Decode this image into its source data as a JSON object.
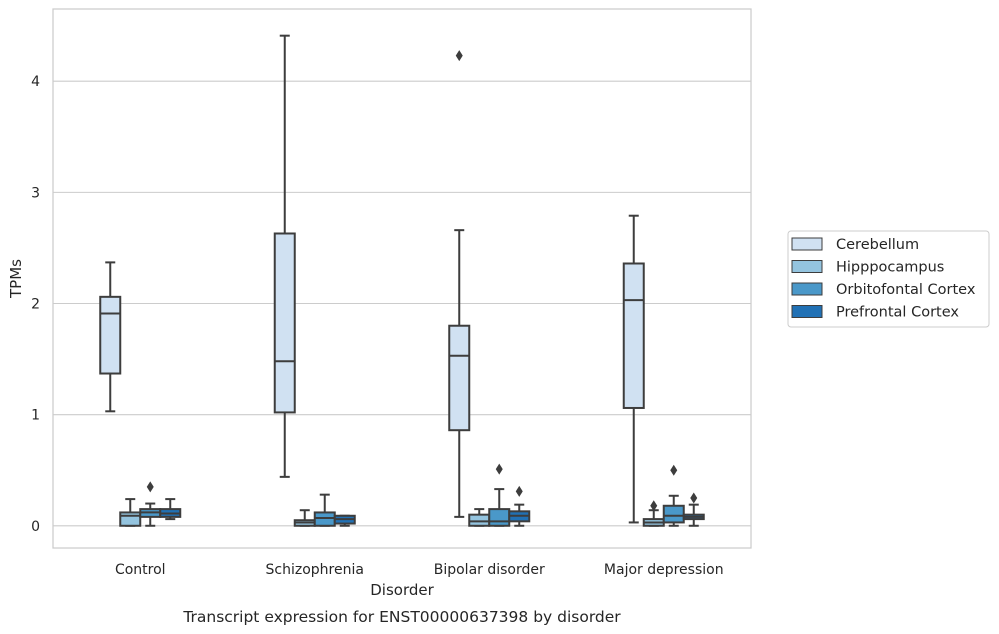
{
  "chart_data": {
    "type": "box",
    "caption": "Transcript expression for ENST00000637398 by disorder",
    "xlabel": "Disorder",
    "ylabel": "TPMs",
    "ylim": [
      -0.2,
      4.65
    ],
    "yticks": [
      0,
      1,
      2,
      3,
      4
    ],
    "grid": "horizontal",
    "legend_position": "right",
    "categories": [
      "Control",
      "Schizophrenia",
      "Bipolar disorder",
      "Major depression"
    ],
    "series": [
      {
        "name": "Cerebellum",
        "color": "#d0e1f2",
        "boxes": [
          {
            "whislo": 1.03,
            "q1": 1.37,
            "med": 1.91,
            "q3": 2.06,
            "whishi": 2.37,
            "fliers": []
          },
          {
            "whislo": 0.44,
            "q1": 1.02,
            "med": 1.48,
            "q3": 2.63,
            "whishi": 4.41,
            "fliers": []
          },
          {
            "whislo": 0.08,
            "q1": 0.86,
            "med": 1.53,
            "q3": 1.8,
            "whishi": 2.66,
            "fliers": [
              4.23
            ]
          },
          {
            "whislo": 0.03,
            "q1": 1.06,
            "med": 2.03,
            "q3": 2.36,
            "whishi": 2.79,
            "fliers": []
          }
        ]
      },
      {
        "name": "Hipppocampus",
        "color": "#94c4df",
        "boxes": [
          {
            "whislo": 0.0,
            "q1": 0.0,
            "med": 0.09,
            "q3": 0.12,
            "whishi": 0.24,
            "fliers": []
          },
          {
            "whislo": 0.0,
            "q1": 0.0,
            "med": 0.03,
            "q3": 0.05,
            "whishi": 0.14,
            "fliers": []
          },
          {
            "whislo": 0.0,
            "q1": 0.0,
            "med": 0.04,
            "q3": 0.1,
            "whishi": 0.15,
            "fliers": []
          },
          {
            "whislo": 0.0,
            "q1": 0.0,
            "med": 0.03,
            "q3": 0.06,
            "whishi": 0.14,
            "fliers": [
              0.18
            ]
          }
        ]
      },
      {
        "name": "Orbitofontal Cortex",
        "color": "#4a98c9",
        "boxes": [
          {
            "whislo": 0.0,
            "q1": 0.08,
            "med": 0.12,
            "q3": 0.15,
            "whishi": 0.2,
            "fliers": [
              0.35
            ]
          },
          {
            "whislo": 0.0,
            "q1": 0.0,
            "med": 0.07,
            "q3": 0.12,
            "whishi": 0.28,
            "fliers": []
          },
          {
            "whislo": 0.0,
            "q1": 0.0,
            "med": 0.04,
            "q3": 0.15,
            "whishi": 0.33,
            "fliers": [
              0.51
            ]
          },
          {
            "whislo": 0.0,
            "q1": 0.03,
            "med": 0.09,
            "q3": 0.18,
            "whishi": 0.27,
            "fliers": [
              0.5
            ]
          }
        ]
      },
      {
        "name": "Prefrontal Cortex",
        "color": "#2171b5",
        "boxes": [
          {
            "whislo": 0.06,
            "q1": 0.08,
            "med": 0.11,
            "q3": 0.15,
            "whishi": 0.24,
            "fliers": []
          },
          {
            "whislo": 0.0,
            "q1": 0.02,
            "med": 0.06,
            "q3": 0.09,
            "whishi": 0.09,
            "fliers": []
          },
          {
            "whislo": 0.0,
            "q1": 0.04,
            "med": 0.09,
            "q3": 0.13,
            "whishi": 0.19,
            "fliers": [
              0.31
            ]
          },
          {
            "whislo": 0.0,
            "q1": 0.06,
            "med": 0.08,
            "q3": 0.1,
            "whishi": 0.19,
            "fliers": [
              0.25
            ]
          }
        ]
      }
    ]
  }
}
